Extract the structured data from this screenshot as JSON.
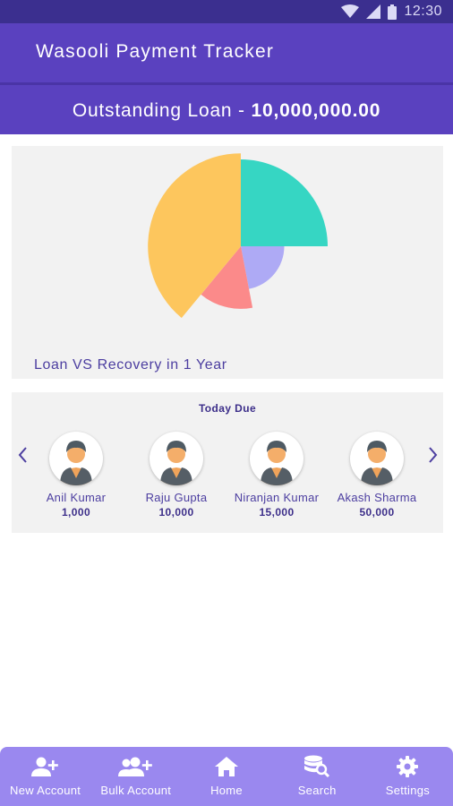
{
  "status_bar": {
    "time": "12:30"
  },
  "app": {
    "title": "Wasooli Payment Tracker"
  },
  "loan": {
    "label": "Outstanding Loan - ",
    "value": "10,000,000.00"
  },
  "chart_data": {
    "type": "pie",
    "caption": "Loan VS Recovery in 1 Year",
    "slices": [
      {
        "color": "#36d6c3",
        "value": 25,
        "radius_scale": 1.0
      },
      {
        "color": "#aeaaf5",
        "value": 22,
        "radius_scale": 0.5
      },
      {
        "color": "#fb8a8a",
        "value": 14,
        "radius_scale": 0.72
      },
      {
        "color": "#fdc65d",
        "value": 39,
        "radius_scale": 1.07
      }
    ],
    "legend": "none"
  },
  "today_due": {
    "title": "Today Due",
    "people": [
      {
        "name": "Anil Kumar",
        "amount": "1,000"
      },
      {
        "name": "Raju Gupta",
        "amount": "10,000"
      },
      {
        "name": "Niranjan Kumar",
        "amount": "15,000"
      },
      {
        "name": "Akash Sharma",
        "amount": "50,000"
      }
    ]
  },
  "bottom_nav": [
    {
      "label": "New Account",
      "icon": "add-person-icon"
    },
    {
      "label": "Bulk Account",
      "icon": "add-group-icon"
    },
    {
      "label": "Home",
      "icon": "home-icon"
    },
    {
      "label": "Search",
      "icon": "search-database-icon"
    },
    {
      "label": "Settings",
      "icon": "gear-icon"
    }
  ],
  "colors": {
    "primary": "#5a41bf",
    "status_bar": "#3b2f8f",
    "nav": "#9a88ef",
    "accent_text": "#4c3ea0"
  }
}
